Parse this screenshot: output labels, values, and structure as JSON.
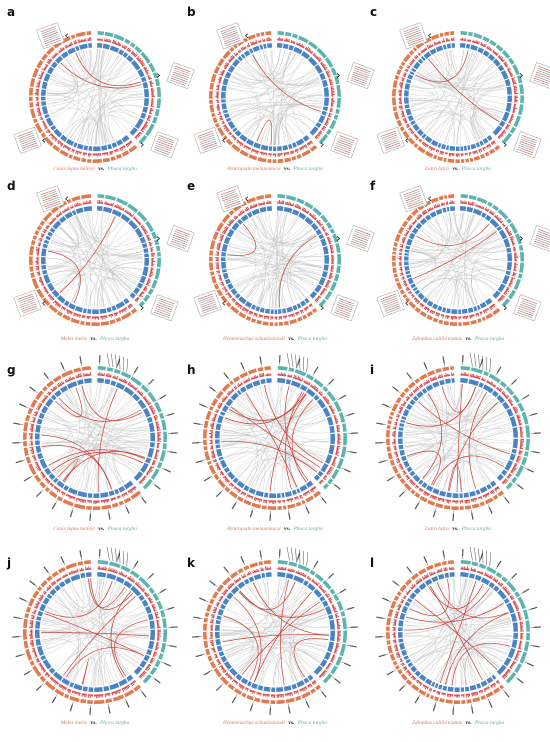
{
  "figure": {
    "colors": {
      "left_species": "#E07A4F",
      "right_species": "#5BB5AE",
      "gene_density": "#4A84C4",
      "histogram": "#D62F2F",
      "link_grey": "#BDBDBD",
      "link_red": "#C8372D"
    },
    "vs_label": "vs.",
    "right_species": "Phoca largha",
    "panels": [
      {
        "letter": "a",
        "left_species": "Canis lupus baileyi",
        "style": "callout-left-right",
        "red_links": 2
      },
      {
        "letter": "b",
        "left_species": "Ailuropoda melanoleuca",
        "style": "callout-left-right",
        "red_links": 2
      },
      {
        "letter": "c",
        "left_species": "Lutra lutra",
        "style": "callout-left-right",
        "red_links": 2
      },
      {
        "letter": "d",
        "left_species": "Meles meles",
        "style": "callout-left-right",
        "red_links": 2
      },
      {
        "letter": "e",
        "left_species": "Neomonachus schauinslandi",
        "style": "callout-left-right",
        "red_links": 2
      },
      {
        "letter": "f",
        "left_species": "Zalophus californianus",
        "style": "callout-left-right",
        "red_links": 2
      },
      {
        "letter": "g",
        "left_species": "Canis lupus baileyi",
        "style": "labels-around",
        "red_links": 10
      },
      {
        "letter": "h",
        "left_species": "Ailuropoda melanoleuca",
        "style": "labels-around",
        "red_links": 10
      },
      {
        "letter": "i",
        "left_species": "Lutra lutra",
        "style": "labels-around",
        "red_links": 10
      },
      {
        "letter": "j",
        "left_species": "Meles meles",
        "style": "labels-around",
        "red_links": 10
      },
      {
        "letter": "k",
        "left_species": "Neomonachus schauinslandi",
        "style": "labels-around",
        "red_links": 10
      },
      {
        "letter": "l",
        "left_species": "Zalophus californianus",
        "style": "labels-around",
        "red_links": 10
      }
    ]
  }
}
